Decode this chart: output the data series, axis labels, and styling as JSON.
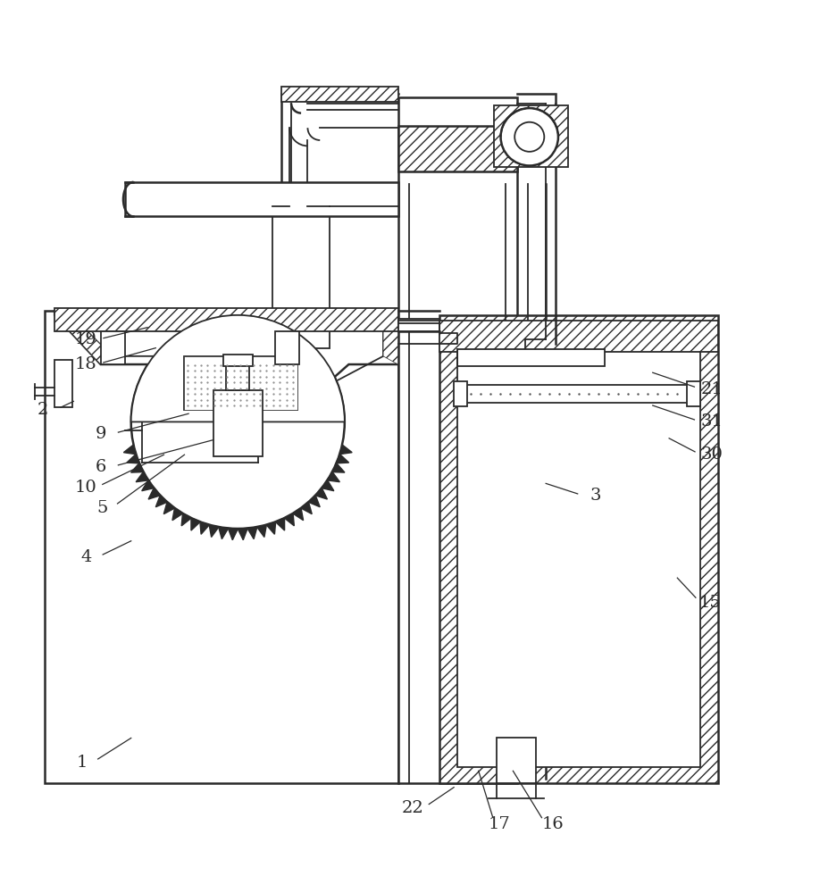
{
  "bg_color": "#ffffff",
  "line_color": "#2a2a2a",
  "lw": 1.3,
  "lw2": 1.8,
  "figsize": [
    9.28,
    10.0
  ],
  "dpi": 100,
  "label_fontsize": 14,
  "labels": {
    "1": [
      0.095,
      0.115,
      0.155,
      0.145
    ],
    "2": [
      0.048,
      0.545,
      0.085,
      0.555
    ],
    "3": [
      0.72,
      0.44,
      0.66,
      0.455
    ],
    "4": [
      0.1,
      0.365,
      0.155,
      0.385
    ],
    "5": [
      0.12,
      0.425,
      0.22,
      0.49
    ],
    "6": [
      0.118,
      0.475,
      0.255,
      0.508
    ],
    "9": [
      0.118,
      0.515,
      0.225,
      0.54
    ],
    "10": [
      0.1,
      0.45,
      0.195,
      0.49
    ],
    "15": [
      0.86,
      0.31,
      0.82,
      0.34
    ],
    "16": [
      0.668,
      0.04,
      0.62,
      0.105
    ],
    "17": [
      0.603,
      0.04,
      0.578,
      0.105
    ],
    "18": [
      0.1,
      0.6,
      0.185,
      0.62
    ],
    "19": [
      0.1,
      0.63,
      0.175,
      0.645
    ],
    "21": [
      0.862,
      0.57,
      0.79,
      0.59
    ],
    "22": [
      0.498,
      0.06,
      0.548,
      0.085
    ],
    "30": [
      0.862,
      0.49,
      0.81,
      0.51
    ],
    "31": [
      0.862,
      0.53,
      0.79,
      0.55
    ]
  }
}
